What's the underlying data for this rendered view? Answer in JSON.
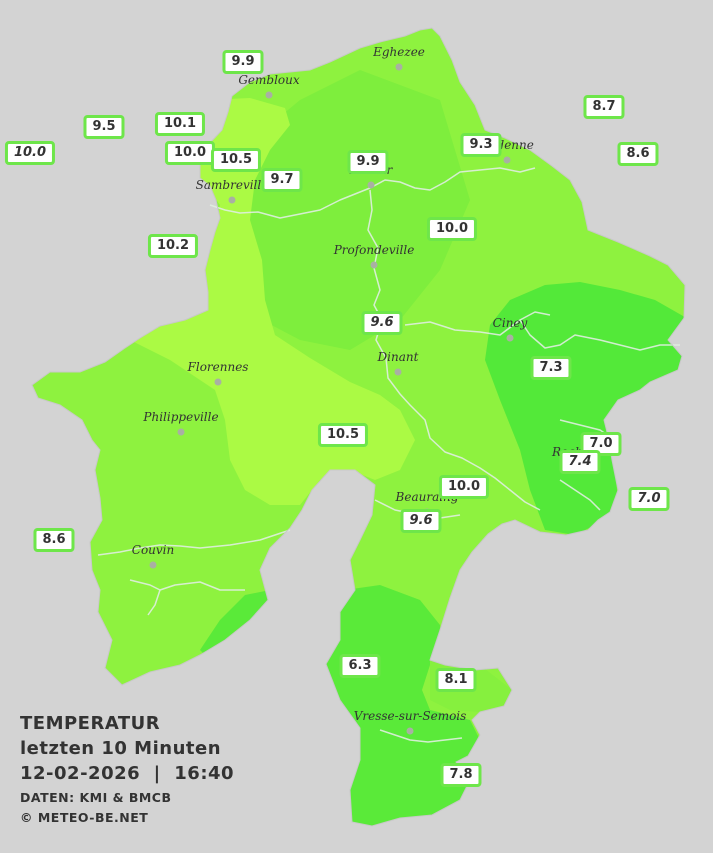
{
  "legend": {
    "title": "TEMPERATUR",
    "subtitle": "letzten 10 Minuten",
    "datetime": "12-02-2026  |  16:40",
    "source": "DATEN: KMI & BMCB",
    "copyright": "© METEO-BE.NET"
  },
  "colors": {
    "background": "#d3d3d3",
    "zone_warm": "#abfa44",
    "zone_mid": "#8ef23f",
    "zone_cool": "#68ee3c",
    "zone_cold": "#4ee838",
    "rivers": "#dfeee0",
    "label_border": "#6ee64a"
  },
  "cities": [
    {
      "name": "Eghezee",
      "icon": "city-dot"
    },
    {
      "name": "Gembloux",
      "icon": "city-dot"
    },
    {
      "name": "Andenne",
      "icon": "city-dot"
    },
    {
      "name": "Namur",
      "icon": "city-dot"
    },
    {
      "name": "Sambreville",
      "icon": "city-dot"
    },
    {
      "name": "Profondeville",
      "icon": "city-dot"
    },
    {
      "name": "Ciney",
      "icon": "city-dot"
    },
    {
      "name": "Dinant",
      "icon": "city-dot"
    },
    {
      "name": "Florennes",
      "icon": "city-dot"
    },
    {
      "name": "Philippeville",
      "icon": "city-dot"
    },
    {
      "name": "Rochefort",
      "icon": "city-dot"
    },
    {
      "name": "Beauraing",
      "icon": "city-dot"
    },
    {
      "name": "Couvin",
      "icon": "city-dot"
    },
    {
      "name": "Vresse-sur-Semois",
      "icon": "city-dot"
    }
  ],
  "stations": [
    {
      "value": "9.9",
      "italic": false
    },
    {
      "value": "9.5",
      "italic": false
    },
    {
      "value": "10.1",
      "italic": false
    },
    {
      "value": "10.0",
      "italic": true
    },
    {
      "value": "10.0",
      "italic": false
    },
    {
      "value": "10.5",
      "italic": false
    },
    {
      "value": "9.7",
      "italic": false
    },
    {
      "value": "9.9",
      "italic": false
    },
    {
      "value": "9.3",
      "italic": false
    },
    {
      "value": "8.7",
      "italic": false
    },
    {
      "value": "8.6",
      "italic": false
    },
    {
      "value": "10.2",
      "italic": false
    },
    {
      "value": "10.0",
      "italic": false
    },
    {
      "value": "9.6",
      "italic": true
    },
    {
      "value": "7.3",
      "italic": false
    },
    {
      "value": "10.5",
      "italic": false
    },
    {
      "value": "7.0",
      "italic": false
    },
    {
      "value": "7.4",
      "italic": true
    },
    {
      "value": "7.0",
      "italic": true
    },
    {
      "value": "10.0",
      "italic": false
    },
    {
      "value": "9.6",
      "italic": true
    },
    {
      "value": "8.6",
      "italic": false
    },
    {
      "value": "6.3",
      "italic": false
    },
    {
      "value": "8.1",
      "italic": false
    },
    {
      "value": "7.8",
      "italic": false
    }
  ]
}
